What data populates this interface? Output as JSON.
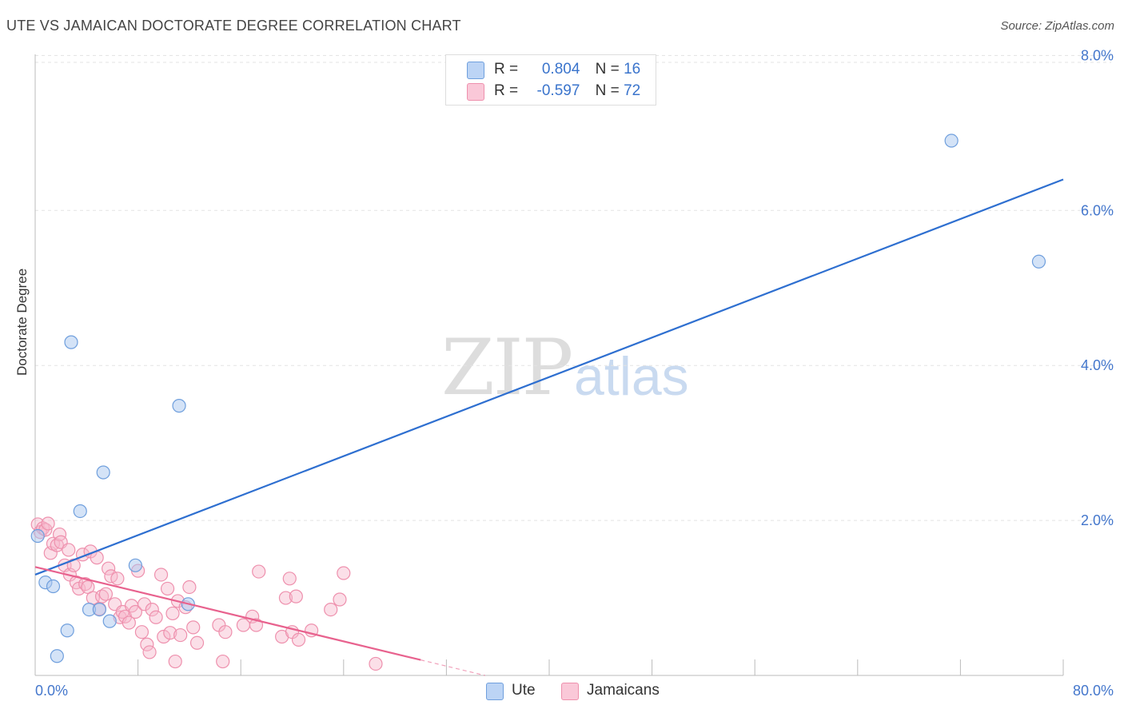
{
  "header": {
    "title": "UTE VS JAMAICAN DOCTORATE DEGREE CORRELATION CHART",
    "source": "Source: ZipAtlas.com"
  },
  "watermark": {
    "zip": "ZIP",
    "atlas": "atlas"
  },
  "legend": {
    "ute": {
      "r_label": "R =",
      "r_value": "0.804",
      "n_label": "N =",
      "n_value": "16"
    },
    "jam": {
      "r_label": "R =",
      "r_value": "-0.597",
      "n_label": "N =",
      "n_value": "72"
    }
  },
  "bottom_legend": {
    "ute": "Ute",
    "jam": "Jamaicans"
  },
  "colors": {
    "ute_fill": "#aac8f0",
    "ute_stroke": "#6f9fdd",
    "ute_line": "#2e6fd0",
    "jam_fill": "#f7b8cc",
    "jam_stroke": "#ee90ad",
    "jam_line": "#e8628e",
    "grid": "#e3e3e3",
    "tick_text": "#4477cc"
  },
  "chart_data": {
    "type": "scatter",
    "title": "UTE VS JAMAICAN DOCTORATE DEGREE CORRELATION CHART",
    "xlabel": "",
    "ylabel": "Doctorate Degree",
    "xlim": [
      0,
      80
    ],
    "ylim": [
      0,
      8.2
    ],
    "x_tick_labels": [
      "0.0%",
      "80.0%"
    ],
    "y_ticks": [
      2,
      4,
      6,
      8
    ],
    "y_tick_labels": [
      "2.0%",
      "4.0%",
      "6.0%",
      "8.0%"
    ],
    "grid": true,
    "legend_position": "top-center",
    "series": [
      {
        "name": "Ute",
        "points": [
          [
            0.2,
            1.8
          ],
          [
            0.8,
            1.2
          ],
          [
            1.4,
            1.15
          ],
          [
            2.5,
            0.58
          ],
          [
            1.7,
            0.25
          ],
          [
            2.8,
            4.3
          ],
          [
            3.5,
            2.12
          ],
          [
            4.2,
            0.85
          ],
          [
            5.0,
            0.85
          ],
          [
            5.3,
            2.62
          ],
          [
            5.8,
            0.7
          ],
          [
            7.8,
            1.42
          ],
          [
            11.2,
            3.48
          ],
          [
            11.9,
            0.92
          ],
          [
            71.3,
            6.9
          ],
          [
            78.1,
            5.34
          ]
        ],
        "trend": [
          [
            0,
            1.3
          ],
          [
            80,
            6.4
          ]
        ]
      },
      {
        "name": "Jamaicans",
        "points": [
          [
            0.2,
            1.95
          ],
          [
            0.4,
            1.85
          ],
          [
            0.6,
            1.9
          ],
          [
            0.8,
            1.88
          ],
          [
            1.0,
            1.96
          ],
          [
            1.2,
            1.58
          ],
          [
            1.4,
            1.7
          ],
          [
            1.7,
            1.68
          ],
          [
            1.9,
            1.82
          ],
          [
            2.0,
            1.72
          ],
          [
            2.3,
            1.42
          ],
          [
            2.6,
            1.62
          ],
          [
            2.7,
            1.3
          ],
          [
            3.0,
            1.42
          ],
          [
            3.2,
            1.2
          ],
          [
            3.4,
            1.12
          ],
          [
            3.7,
            1.56
          ],
          [
            3.9,
            1.18
          ],
          [
            4.1,
            1.14
          ],
          [
            4.3,
            1.6
          ],
          [
            4.5,
            1.0
          ],
          [
            4.8,
            1.52
          ],
          [
            5.0,
            0.86
          ],
          [
            5.2,
            1.02
          ],
          [
            5.5,
            1.05
          ],
          [
            5.7,
            1.38
          ],
          [
            5.9,
            1.28
          ],
          [
            6.2,
            0.92
          ],
          [
            6.4,
            1.25
          ],
          [
            6.6,
            0.75
          ],
          [
            6.8,
            0.82
          ],
          [
            7.0,
            0.76
          ],
          [
            7.3,
            0.68
          ],
          [
            7.5,
            0.9
          ],
          [
            7.8,
            0.82
          ],
          [
            8.0,
            1.35
          ],
          [
            8.3,
            0.56
          ],
          [
            8.5,
            0.92
          ],
          [
            8.7,
            0.4
          ],
          [
            8.9,
            0.3
          ],
          [
            9.1,
            0.85
          ],
          [
            9.4,
            0.75
          ],
          [
            9.8,
            1.3
          ],
          [
            10.0,
            0.5
          ],
          [
            10.3,
            1.12
          ],
          [
            10.5,
            0.55
          ],
          [
            10.7,
            0.8
          ],
          [
            10.9,
            0.18
          ],
          [
            11.1,
            0.96
          ],
          [
            11.3,
            0.52
          ],
          [
            11.7,
            0.88
          ],
          [
            12.0,
            1.14
          ],
          [
            12.3,
            0.62
          ],
          [
            12.6,
            0.42
          ],
          [
            14.3,
            0.65
          ],
          [
            14.6,
            0.18
          ],
          [
            14.8,
            0.56
          ],
          [
            16.2,
            0.65
          ],
          [
            16.9,
            0.76
          ],
          [
            17.2,
            0.65
          ],
          [
            17.4,
            1.34
          ],
          [
            19.2,
            0.5
          ],
          [
            19.5,
            1.0
          ],
          [
            19.8,
            1.25
          ],
          [
            20.0,
            0.56
          ],
          [
            20.3,
            1.02
          ],
          [
            20.5,
            0.46
          ],
          [
            21.5,
            0.58
          ],
          [
            23.0,
            0.85
          ],
          [
            23.7,
            0.98
          ],
          [
            24.0,
            1.32
          ],
          [
            26.5,
            0.15
          ]
        ],
        "trend": [
          [
            0,
            1.4
          ],
          [
            30,
            0.2
          ]
        ],
        "trend_dashed": [
          [
            30,
            0.2
          ],
          [
            35,
            0.0
          ]
        ]
      }
    ]
  }
}
